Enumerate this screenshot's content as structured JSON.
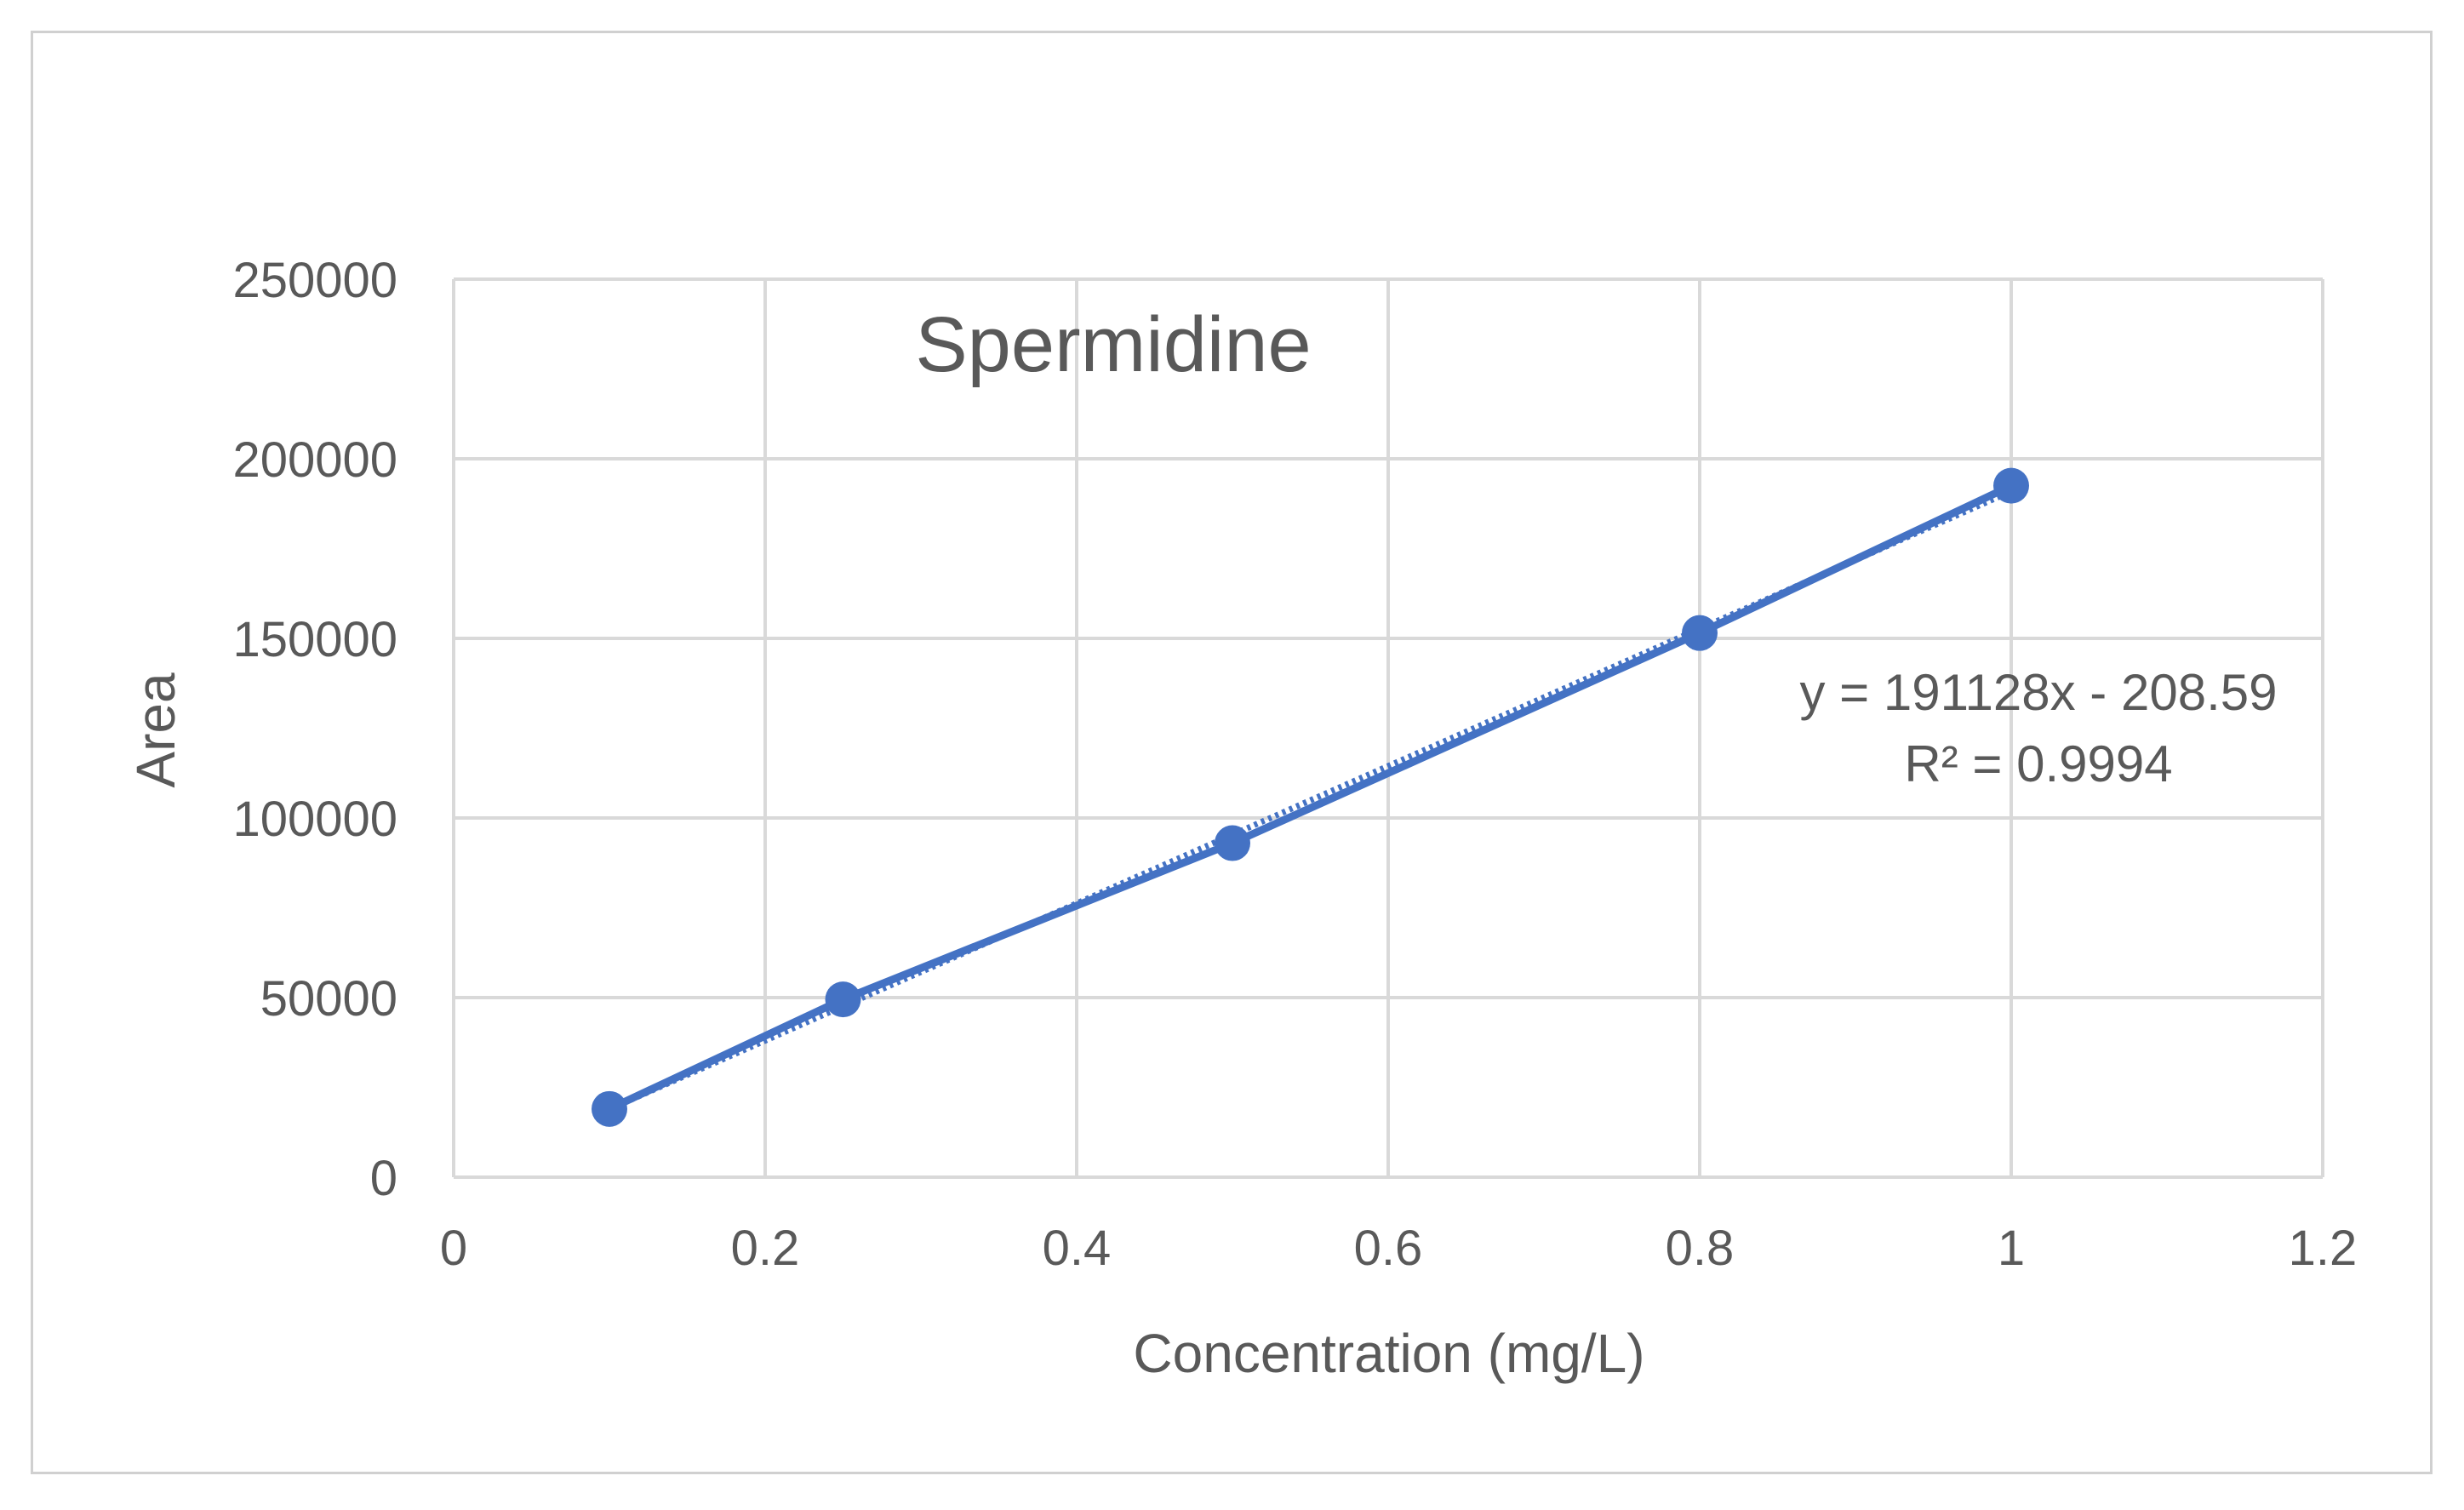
{
  "chart_data": {
    "type": "scatter",
    "title": "Spermidine",
    "xlabel": "Concentration (mg/L)",
    "ylabel": "Area",
    "xlim": [
      0,
      1.2
    ],
    "ylim": [
      0,
      250000
    ],
    "x_ticks": [
      "0",
      "0.2",
      "0.4",
      "0.6",
      "0.8",
      "1",
      "1.2"
    ],
    "y_ticks": [
      "0",
      "50000",
      "100000",
      "150000",
      "200000",
      "250000"
    ],
    "x_tick_values": [
      0,
      0.2,
      0.4,
      0.6,
      0.8,
      1,
      1.2
    ],
    "y_tick_values": [
      0,
      50000,
      100000,
      150000,
      200000,
      250000
    ],
    "grid": true,
    "series": [
      {
        "x": [
          0.1,
          0.25,
          0.5,
          0.8,
          1.0
        ],
        "y": [
          19000,
          49500,
          93000,
          151500,
          192500
        ],
        "color": "#4472C4",
        "connected": true
      }
    ],
    "trendline": {
      "type": "linear",
      "slope": 191128,
      "intercept": -208.59,
      "style": "dotted",
      "color": "#4472C4",
      "equation": "y = 191128x - 208.59",
      "r_squared": "R² = 0.9994"
    }
  }
}
